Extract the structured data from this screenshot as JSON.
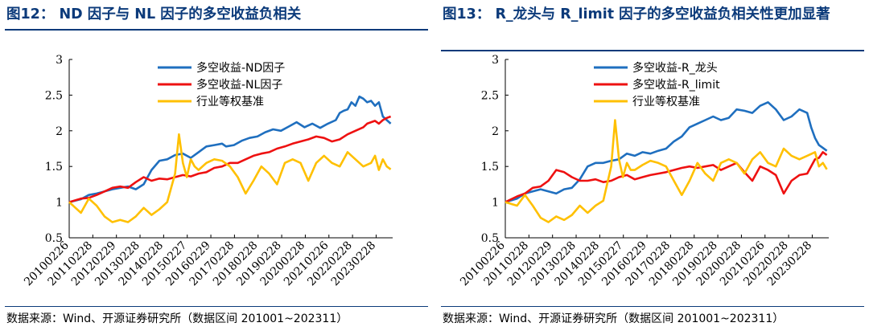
{
  "charts": [
    {
      "title": "图12：  ND 因子与 NL 因子的多空收益负相关",
      "source": "数据来源：Wind、开源证券研究所（数据区间 201001~202311）",
      "chart_data": {
        "type": "line",
        "ylim": [
          0.5,
          3
        ],
        "yticks": [
          "0.5",
          "1",
          "1.5",
          "2",
          "2.5",
          "3"
        ],
        "xlim": [
          0,
          165
        ],
        "xtick_labels": [
          "20100226",
          "20110228",
          "20120229",
          "20130228",
          "20140228",
          "20150227",
          "20160229",
          "20170228",
          "20180228",
          "20190228",
          "20200228",
          "20210226",
          "20220228",
          "20230228"
        ],
        "legend_position": "top",
        "grid": false,
        "series": [
          {
            "name": "多空收益-ND因子",
            "color": "#1f6fbf",
            "x": [
              0,
              6,
              10,
              14,
              18,
              22,
              26,
              30,
              34,
              38,
              42,
              46,
              50,
              54,
              58,
              62,
              66,
              70,
              74,
              78,
              80,
              84,
              88,
              92,
              96,
              100,
              104,
              108,
              112,
              116,
              120,
              124,
              128,
              132,
              136,
              138,
              140,
              142,
              144,
              146,
              148,
              150,
              152,
              154,
              156,
              158,
              160,
              162,
              164
            ],
            "y": [
              1.0,
              1.04,
              1.1,
              1.12,
              1.15,
              1.18,
              1.2,
              1.22,
              1.18,
              1.25,
              1.45,
              1.58,
              1.6,
              1.66,
              1.68,
              1.62,
              1.7,
              1.78,
              1.8,
              1.82,
              1.78,
              1.8,
              1.86,
              1.9,
              1.92,
              1.98,
              2.02,
              2.0,
              2.06,
              2.12,
              2.05,
              2.1,
              2.04,
              2.1,
              2.15,
              2.25,
              2.28,
              2.3,
              2.4,
              2.35,
              2.48,
              2.45,
              2.4,
              2.42,
              2.35,
              2.4,
              2.2,
              2.15,
              2.1
            ]
          },
          {
            "name": "多空收益-NL因子",
            "color": "#ee1111",
            "x": [
              0,
              6,
              10,
              14,
              18,
              22,
              26,
              30,
              34,
              38,
              42,
              46,
              50,
              54,
              58,
              62,
              66,
              70,
              74,
              78,
              82,
              86,
              90,
              94,
              98,
              102,
              106,
              110,
              114,
              118,
              122,
              126,
              130,
              134,
              138,
              142,
              146,
              150,
              152,
              154,
              156,
              158,
              160,
              162,
              164
            ],
            "y": [
              1.0,
              1.05,
              1.06,
              1.1,
              1.15,
              1.2,
              1.22,
              1.2,
              1.28,
              1.35,
              1.3,
              1.33,
              1.32,
              1.35,
              1.38,
              1.36,
              1.4,
              1.42,
              1.48,
              1.5,
              1.55,
              1.55,
              1.6,
              1.65,
              1.68,
              1.7,
              1.75,
              1.78,
              1.82,
              1.85,
              1.88,
              1.92,
              1.9,
              1.85,
              1.88,
              1.95,
              2.0,
              2.05,
              2.1,
              2.12,
              2.14,
              2.1,
              2.15,
              2.18,
              2.2
            ]
          },
          {
            "name": "行业等权基准",
            "color": "#ffc000",
            "x": [
              0,
              6,
              10,
              14,
              18,
              22,
              26,
              30,
              34,
              38,
              42,
              46,
              50,
              54,
              56,
              58,
              60,
              62,
              64,
              66,
              70,
              74,
              78,
              82,
              86,
              90,
              94,
              98,
              102,
              106,
              110,
              114,
              118,
              122,
              126,
              130,
              134,
              138,
              142,
              146,
              150,
              154,
              156,
              158,
              160,
              162,
              164
            ],
            "y": [
              1.0,
              0.85,
              1.05,
              0.95,
              0.8,
              0.72,
              0.75,
              0.72,
              0.8,
              0.92,
              0.82,
              0.9,
              1.0,
              1.4,
              1.95,
              1.55,
              1.35,
              1.6,
              1.5,
              1.45,
              1.55,
              1.6,
              1.58,
              1.5,
              1.35,
              1.12,
              1.3,
              1.5,
              1.4,
              1.25,
              1.55,
              1.6,
              1.55,
              1.3,
              1.55,
              1.65,
              1.55,
              1.5,
              1.7,
              1.6,
              1.5,
              1.55,
              1.65,
              1.45,
              1.6,
              1.5,
              1.46
            ]
          }
        ]
      }
    },
    {
      "title": "图13：  R_龙头与 R_limit 因子的多空收益负相关性更加显著",
      "source": "数据来源：Wind、开源证券研究所（数据区间 201001~202311）",
      "chart_data": {
        "type": "line",
        "ylim": [
          0.5,
          3
        ],
        "yticks": [
          "0.5",
          "1",
          "1.5",
          "2",
          "2.5",
          "3"
        ],
        "xlim": [
          0,
          165
        ],
        "xtick_labels": [
          "20100226",
          "20110228",
          "20120229",
          "20130228",
          "20140228",
          "20150227",
          "20160229",
          "20170228",
          "20180228",
          "20190228",
          "20200228",
          "20210226",
          "20220228",
          "20230228"
        ],
        "legend_position": "top",
        "grid": false,
        "series": [
          {
            "name": "多空收益-R_龙头",
            "color": "#1f6fbf",
            "x": [
              0,
              6,
              10,
              14,
              18,
              22,
              26,
              30,
              34,
              38,
              42,
              46,
              50,
              54,
              58,
              62,
              66,
              70,
              74,
              78,
              82,
              86,
              90,
              94,
              98,
              102,
              106,
              110,
              114,
              118,
              122,
              126,
              130,
              134,
              138,
              142,
              146,
              150,
              154,
              156,
              158,
              160,
              162,
              164
            ],
            "y": [
              1.0,
              1.05,
              1.12,
              1.15,
              1.18,
              1.15,
              1.12,
              1.18,
              1.2,
              1.32,
              1.5,
              1.55,
              1.55,
              1.58,
              1.6,
              1.68,
              1.65,
              1.7,
              1.68,
              1.72,
              1.75,
              1.85,
              1.92,
              2.05,
              2.1,
              2.15,
              2.2,
              2.15,
              2.18,
              2.3,
              2.28,
              2.25,
              2.35,
              2.4,
              2.3,
              2.15,
              2.2,
              2.3,
              2.25,
              2.05,
              1.9,
              1.8,
              1.76,
              1.72
            ]
          },
          {
            "name": "多空收益-R_limit",
            "color": "#ee1111",
            "x": [
              0,
              6,
              10,
              14,
              18,
              22,
              26,
              30,
              34,
              38,
              42,
              46,
              50,
              54,
              58,
              62,
              66,
              70,
              74,
              78,
              82,
              86,
              90,
              94,
              98,
              102,
              106,
              110,
              114,
              118,
              122,
              126,
              130,
              134,
              138,
              142,
              146,
              150,
              154,
              158,
              160,
              162,
              164
            ],
            "y": [
              1.0,
              1.08,
              1.12,
              1.2,
              1.22,
              1.3,
              1.45,
              1.42,
              1.35,
              1.3,
              1.3,
              1.32,
              1.28,
              1.3,
              1.35,
              1.38,
              1.32,
              1.35,
              1.38,
              1.4,
              1.42,
              1.45,
              1.48,
              1.5,
              1.48,
              1.5,
              1.52,
              1.45,
              1.5,
              1.55,
              1.42,
              1.3,
              1.5,
              1.45,
              1.38,
              1.12,
              1.3,
              1.38,
              1.4,
              1.6,
              1.62,
              1.7,
              1.66
            ]
          },
          {
            "name": "行业等权基准",
            "color": "#ffc000",
            "x": [
              0,
              6,
              10,
              14,
              18,
              22,
              26,
              30,
              34,
              38,
              42,
              46,
              50,
              54,
              56,
              58,
              60,
              62,
              64,
              66,
              70,
              74,
              78,
              82,
              86,
              90,
              94,
              98,
              102,
              106,
              110,
              114,
              118,
              122,
              126,
              130,
              134,
              138,
              142,
              146,
              150,
              154,
              158,
              160,
              162,
              164
            ],
            "y": [
              1.0,
              0.95,
              1.1,
              0.95,
              0.78,
              0.72,
              0.8,
              0.75,
              0.82,
              0.95,
              0.85,
              0.95,
              1.02,
              1.5,
              2.15,
              1.6,
              1.35,
              1.55,
              1.45,
              1.45,
              1.52,
              1.58,
              1.55,
              1.5,
              1.3,
              1.1,
              1.3,
              1.55,
              1.4,
              1.3,
              1.55,
              1.6,
              1.55,
              1.4,
              1.6,
              1.7,
              1.55,
              1.5,
              1.75,
              1.65,
              1.6,
              1.65,
              1.7,
              1.5,
              1.55,
              1.46
            ]
          }
        ]
      }
    }
  ]
}
